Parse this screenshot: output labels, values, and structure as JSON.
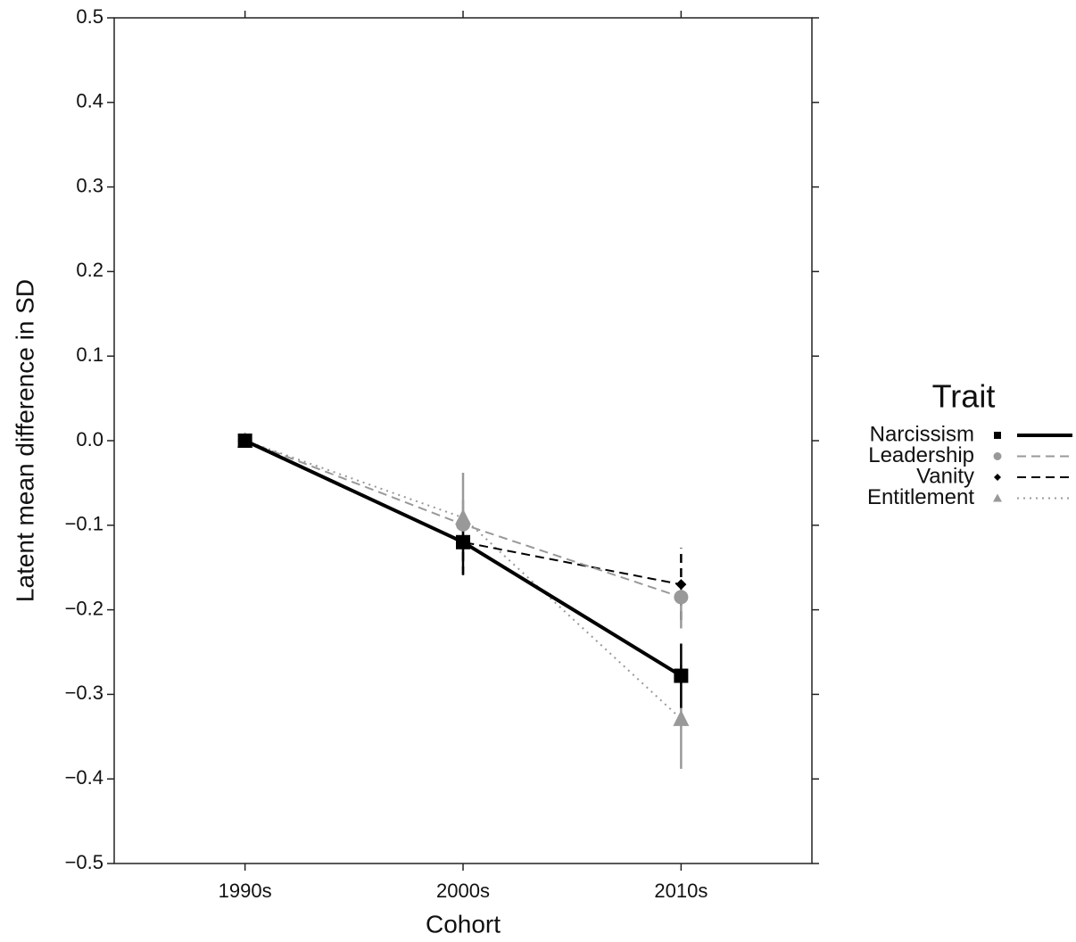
{
  "chart_data": {
    "type": "line",
    "x_label": "Cohort",
    "y_label": "Latent mean difference in SD",
    "categories": [
      "1990s",
      "2000s",
      "2010s"
    ],
    "ylim": [
      -0.5,
      0.5
    ],
    "yticks": [
      {
        "value": -0.5,
        "label": "−0.5"
      },
      {
        "value": -0.4,
        "label": "−0.4"
      },
      {
        "value": -0.3,
        "label": "−0.3"
      },
      {
        "value": -0.2,
        "label": "−0.2"
      },
      {
        "value": -0.1,
        "label": "−0.1"
      },
      {
        "value": 0,
        "label": "0.0"
      },
      0.1,
      0.2,
      0.3,
      0.4,
      0.5
    ],
    "legend_title": "Trait",
    "legend_position": "right",
    "series": [
      {
        "name": "Narcissism",
        "color": "#000000",
        "style": "solid",
        "width": 4,
        "marker": "square",
        "values": [
          0,
          -0.12,
          -0.278
        ],
        "ci_low": [
          null,
          -0.158,
          -0.316
        ],
        "ci_high": [
          null,
          -0.1,
          -0.24
        ]
      },
      {
        "name": "Leadership",
        "color": "#999999",
        "style": "dashed",
        "width": 2,
        "marker": "circle",
        "values": [
          0,
          -0.099,
          -0.185
        ],
        "ci_low": [
          null,
          -0.13,
          -0.222
        ],
        "ci_high": [
          null,
          -0.07,
          -0.165
        ]
      },
      {
        "name": "Vanity",
        "color": "#000000",
        "style": "dashed",
        "width": 2,
        "marker": "diamond",
        "values": [
          0,
          -0.12,
          -0.17
        ],
        "ci_low": [
          null,
          -0.159,
          -0.212
        ],
        "ci_high": [
          null,
          -0.085,
          -0.127
        ]
      },
      {
        "name": "Entitlement",
        "color": "#999999",
        "style": "dotted",
        "width": 2,
        "marker": "triangle",
        "values": [
          0,
          -0.091,
          -0.329
        ],
        "ci_low": [
          null,
          -0.143,
          -0.388
        ],
        "ci_high": [
          null,
          -0.038,
          -0.265
        ]
      }
    ]
  }
}
